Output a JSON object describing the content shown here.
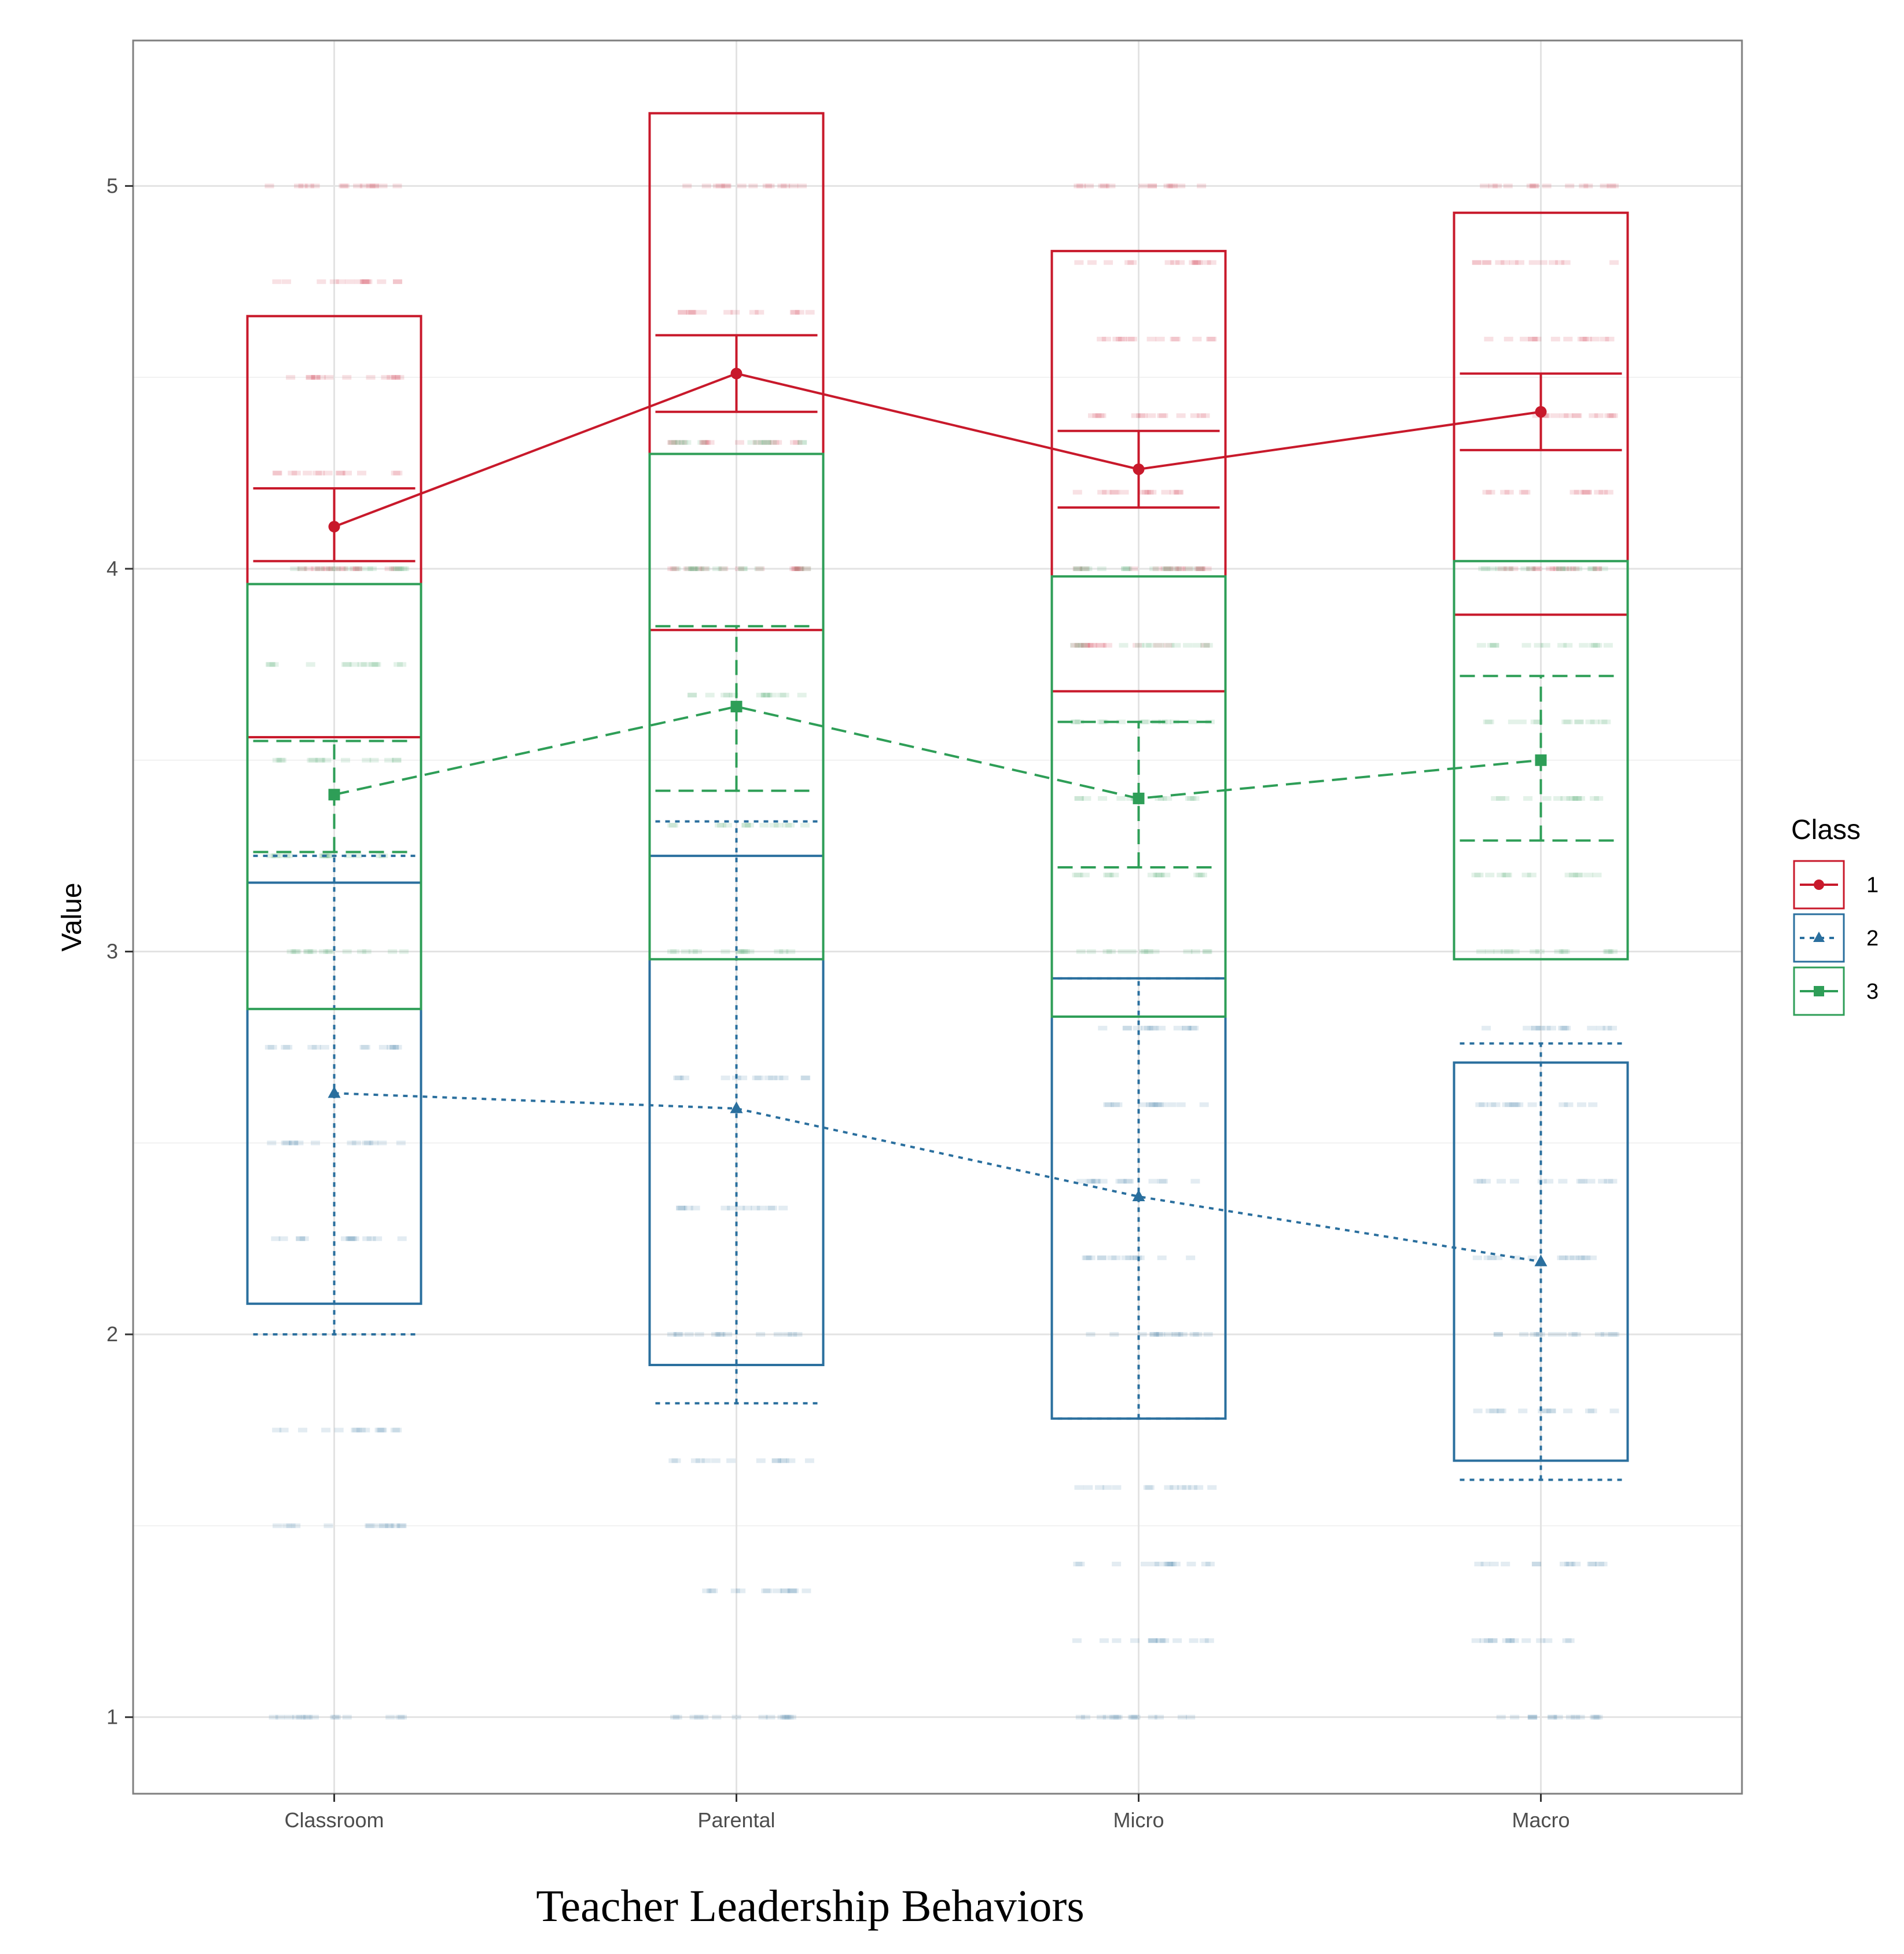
{
  "chart_data": {
    "type": "box-and-line",
    "xlabel": "Teacher Leadership Behaviors",
    "ylabel": "Value",
    "categories": [
      "Classroom",
      "Parental",
      "Micro",
      "Macro"
    ],
    "y_ticks": [
      "1",
      "2",
      "3",
      "4",
      "5"
    ],
    "ylim": [
      0.8,
      5.38
    ],
    "grid": true,
    "legend": {
      "title": "Class",
      "position": "right"
    },
    "series": [
      {
        "name": "1",
        "color": "#c8192b",
        "dash": "solid",
        "marker": "circle",
        "means": [
          4.11,
          4.51,
          4.26,
          4.41
        ],
        "mean_ci": [
          [
            4.02,
            4.21
          ],
          [
            4.41,
            4.61
          ],
          [
            4.16,
            4.36
          ],
          [
            4.31,
            4.51
          ]
        ],
        "sd_bands": [
          [
            3.56,
            4.66
          ],
          [
            3.84,
            5.19
          ],
          [
            3.68,
            4.83
          ],
          [
            3.88,
            4.93
          ]
        ],
        "points": [
          [
            5.0,
            4.75,
            4.5,
            4.25,
            4.0
          ],
          [
            5.0,
            4.67,
            4.33,
            4.0
          ],
          [
            5.0,
            4.8,
            4.6,
            4.4,
            4.2,
            4.0,
            3.8
          ],
          [
            5.0,
            4.8,
            4.6,
            4.4,
            4.2,
            4.0
          ]
        ]
      },
      {
        "name": "2",
        "color": "#2a6f9e",
        "dash": "dotted",
        "marker": "triangle",
        "means": [
          2.63,
          2.59,
          2.36,
          2.19
        ],
        "mean_ci": [
          [
            2.0,
            3.25
          ],
          [
            1.82,
            3.34
          ],
          [
            1.78,
            2.93
          ],
          [
            1.62,
            2.76
          ]
        ],
        "sd_bands": [
          [
            2.08,
            3.18
          ],
          [
            1.92,
            3.25
          ],
          [
            1.78,
            2.93
          ],
          [
            1.67,
            2.71
          ]
        ],
        "points": [
          [
            2.75,
            2.5,
            2.25,
            1.75,
            1.5,
            1.0
          ],
          [
            2.67,
            2.33,
            2.0,
            1.67,
            1.33,
            1.0
          ],
          [
            2.8,
            2.6,
            2.4,
            2.2,
            2.0,
            1.6,
            1.4,
            1.2,
            1.0
          ],
          [
            2.8,
            2.6,
            2.4,
            2.2,
            2.0,
            1.8,
            1.4,
            1.2,
            1.0
          ]
        ]
      },
      {
        "name": "3",
        "color": "#2e9e57",
        "dash": "dashed",
        "marker": "square",
        "means": [
          3.41,
          3.64,
          3.4,
          3.5
        ],
        "mean_ci": [
          [
            3.26,
            3.55
          ],
          [
            3.42,
            3.85
          ],
          [
            3.22,
            3.6
          ],
          [
            3.29,
            3.72
          ]
        ],
        "sd_bands": [
          [
            2.85,
            3.96
          ],
          [
            2.98,
            4.3
          ],
          [
            2.83,
            3.98
          ],
          [
            2.98,
            4.02
          ]
        ],
        "points": [
          [
            4.0,
            3.75,
            3.5,
            3.25,
            3.0
          ],
          [
            4.33,
            4.0,
            3.67,
            3.33,
            3.0
          ],
          [
            4.0,
            3.8,
            3.6,
            3.4,
            3.2,
            3.0
          ],
          [
            4.0,
            3.8,
            3.6,
            3.4,
            3.2,
            3.0
          ]
        ]
      }
    ]
  }
}
